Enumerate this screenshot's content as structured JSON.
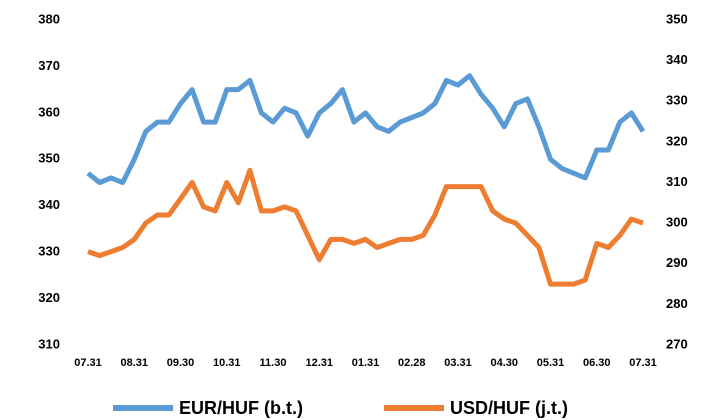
{
  "chart_data": {
    "type": "line",
    "categories": [
      "07.31",
      null,
      null,
      null,
      "08.31",
      null,
      null,
      null,
      "09.30",
      null,
      null,
      null,
      "10.31",
      null,
      null,
      null,
      "11.30",
      null,
      null,
      null,
      "12.31",
      null,
      null,
      null,
      "01.31",
      null,
      null,
      null,
      "02.28",
      null,
      null,
      null,
      "03.31",
      null,
      null,
      null,
      "04.30",
      null,
      null,
      null,
      "05.31",
      null,
      null,
      null,
      "06.30",
      null,
      null,
      null,
      "07.31"
    ],
    "series": [
      {
        "name": "EUR/HUF (b.t.)",
        "color": "#5b9bd5",
        "values": [
          347,
          345,
          346,
          345,
          350,
          356,
          358,
          358,
          362,
          365,
          358,
          358,
          365,
          365,
          367,
          360,
          358,
          361,
          360,
          355,
          360,
          362,
          365,
          358,
          360,
          357,
          356,
          358,
          359,
          360,
          362,
          367,
          366,
          368,
          364,
          361,
          357,
          362,
          363,
          357,
          350,
          348,
          347,
          346,
          352,
          352,
          358,
          360,
          356
        ]
      },
      {
        "name": "USD/HUF (j.t.)",
        "color": "#ed7d31",
        "axis": "y2",
        "values": [
          293,
          292,
          293,
          294,
          296,
          300,
          302,
          302,
          306,
          310,
          304,
          303,
          310,
          305,
          313,
          303,
          303,
          304,
          303,
          297,
          291,
          296,
          296,
          295,
          296,
          294,
          295,
          296,
          296,
          297,
          302,
          309,
          309,
          309,
          309,
          303,
          301,
          300,
          297,
          294,
          285,
          285,
          285,
          286,
          295,
          294,
          297,
          301,
          300
        ]
      }
    ],
    "ylim": [
      310,
      380
    ],
    "yticks": [
      310,
      320,
      330,
      340,
      350,
      360,
      370,
      380
    ],
    "y2lim": [
      270,
      350
    ],
    "y2ticks": [
      270,
      280,
      290,
      300,
      310,
      320,
      330,
      340,
      350
    ],
    "grid": false,
    "legend": "bottom"
  }
}
